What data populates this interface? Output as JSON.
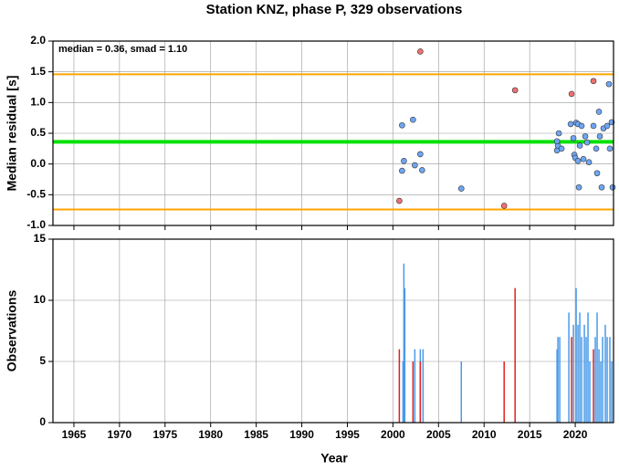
{
  "chart_data": [
    {
      "type": "scatter",
      "title": "Station KNZ, phase P, 329 observations",
      "annotation": "median = 0.36, smad = 1.10",
      "y_label": "Median residual [s]",
      "xlim": [
        1962.7,
        2024.2
      ],
      "xticks": [
        1965,
        1970,
        1975,
        1980,
        1985,
        1990,
        1995,
        2000,
        2005,
        2010,
        2015,
        2020
      ],
      "xtick_labels": false,
      "ylim": [
        -1.0,
        2.0
      ],
      "yticks": [
        {
          "value": -1,
          "label": "-1.0"
        },
        {
          "value": -0.5,
          "label": "-0.5"
        },
        {
          "value": 0,
          "label": "0.0"
        },
        {
          "value": 0.5,
          "label": "0.5"
        },
        {
          "value": 1,
          "label": "1.0"
        },
        {
          "value": 1.5,
          "label": "1.5"
        },
        {
          "value": 2,
          "label": "2.0"
        }
      ],
      "grid": true,
      "hlines": [
        {
          "value": 1.46,
          "color": "#ffa500"
        },
        {
          "value": -0.74,
          "color": "#ffa500"
        },
        {
          "value": 0.36,
          "color": "#00e000"
        }
      ],
      "series": [
        {
          "color": "#6ea6f5",
          "x": [
            2001.0,
            2001.2,
            2001.0,
            2002.2,
            2002.4,
            2003.0,
            2003.2,
            2007.5,
            2018.0,
            2018.1,
            2018.2,
            2018.0,
            2018.5,
            2019.5,
            2019.8,
            2019.9,
            2020.0,
            2020.1,
            2020.3,
            2020.3,
            2020.4,
            2020.5,
            2020.7,
            2020.9,
            2021.1,
            2021.3,
            2021.5,
            2022.0,
            2022.3,
            2022.4,
            2022.6,
            2022.7,
            2022.9,
            2023.1,
            2023.5,
            2023.7,
            2023.8,
            2024.0,
            2024.1
          ],
          "values": [
            0.63,
            0.05,
            -0.11,
            0.72,
            -0.02,
            0.16,
            -0.1,
            -0.4,
            0.22,
            0.3,
            0.5,
            0.37,
            0.25,
            0.65,
            0.42,
            0.15,
            0.1,
            0.67,
            0.65,
            0.05,
            -0.38,
            0.3,
            0.62,
            0.08,
            0.45,
            0.35,
            0.03,
            0.62,
            0.25,
            -0.15,
            0.85,
            0.45,
            -0.38,
            0.58,
            0.62,
            1.3,
            0.25,
            0.68,
            -0.38
          ]
        },
        {
          "color": "#f07070",
          "x": [
            2000.7,
            2003.0,
            2012.2,
            2013.4,
            2019.6,
            2022.0
          ],
          "values": [
            -0.6,
            1.83,
            -0.68,
            1.2,
            1.14,
            1.35
          ]
        }
      ]
    },
    {
      "type": "bar",
      "x_label": "Year",
      "y_label": "Observations",
      "xlim": [
        1962.7,
        2024.2
      ],
      "xticks": [
        1965,
        1970,
        1975,
        1980,
        1985,
        1990,
        1995,
        2000,
        2005,
        2010,
        2015,
        2020
      ],
      "xtick_labels": true,
      "ylim": [
        0,
        15
      ],
      "yticks": [
        0,
        5,
        10,
        15
      ],
      "grid": true,
      "series": [
        {
          "color": "#4a9ae8",
          "x": [
            2001.1,
            2001.2,
            2001.3,
            2002.4,
            2003.0,
            2003.3,
            2007.5,
            2018.0,
            2018.1,
            2018.3,
            2019.3,
            2019.8,
            2020.1,
            2020.3,
            2020.5,
            2020.7,
            2021.0,
            2021.2,
            2021.4,
            2021.6,
            2022.2,
            2022.4,
            2022.6,
            2022.8,
            2023.0,
            2023.3,
            2023.5,
            2023.8,
            2024.0
          ],
          "values": [
            5,
            13,
            11,
            6,
            6,
            6,
            5,
            6,
            7,
            7,
            9,
            8,
            11,
            8,
            9,
            7,
            8,
            7,
            9,
            5,
            7,
            9,
            6,
            5,
            7,
            8,
            7,
            7,
            5
          ]
        },
        {
          "color": "#e02020",
          "x": [
            2000.7,
            2002.2,
            2003.0,
            2012.2,
            2013.4,
            2019.6,
            2022.0
          ],
          "values": [
            6,
            5,
            5,
            5,
            11,
            7,
            6
          ]
        }
      ]
    }
  ]
}
